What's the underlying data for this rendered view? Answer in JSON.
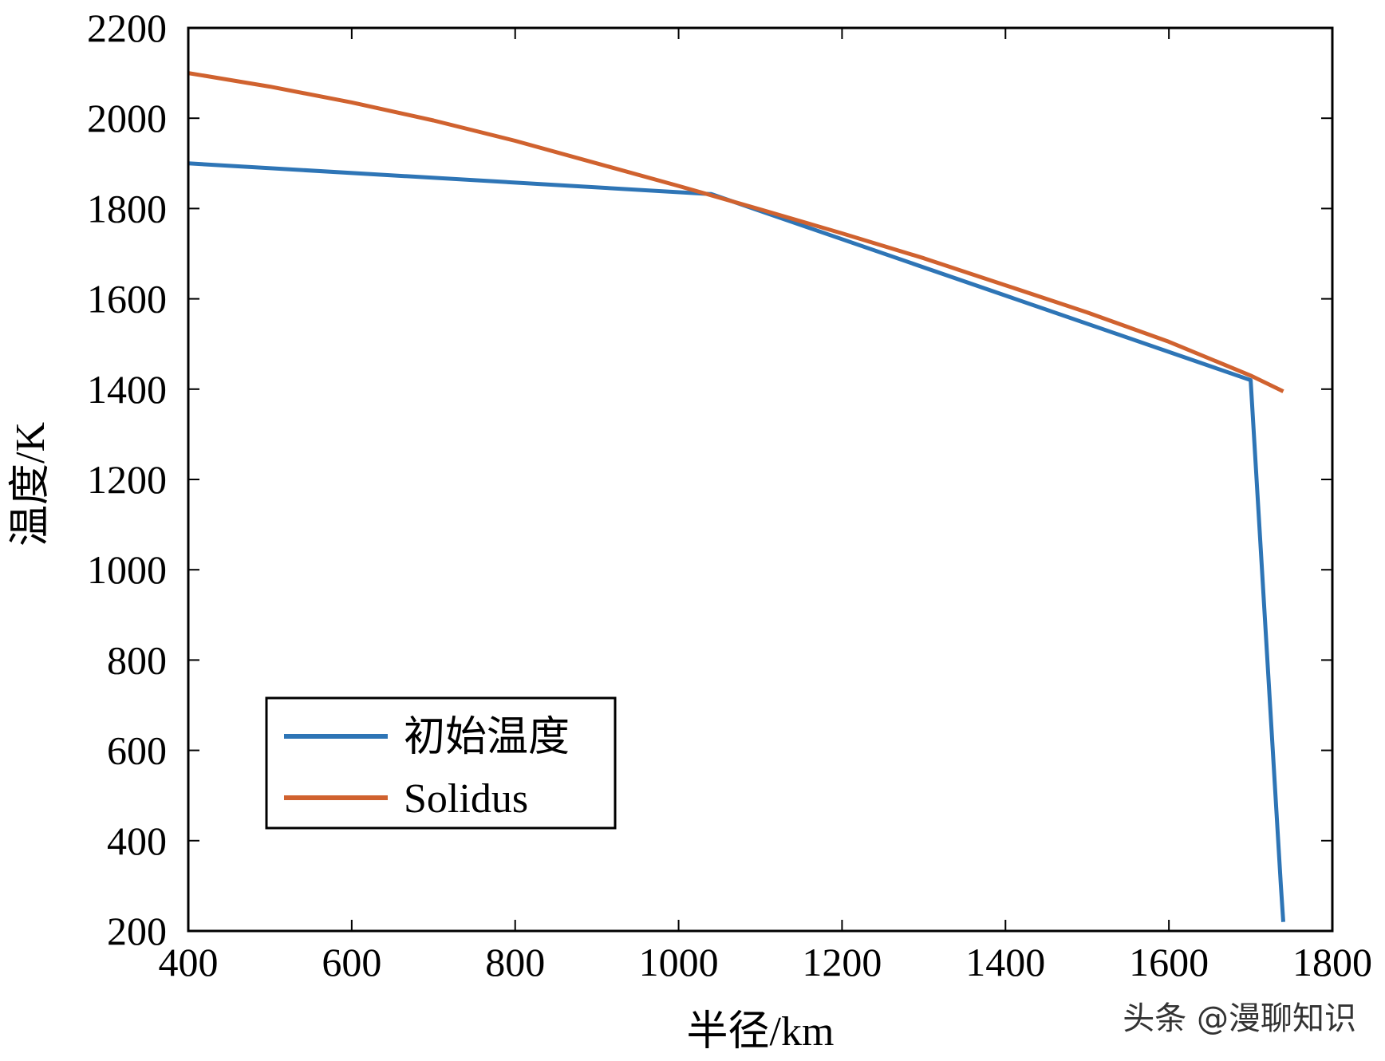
{
  "chart_data": {
    "type": "line",
    "title": "",
    "xlabel": "半径/km",
    "ylabel": "温度/K",
    "xlim": [
      400,
      1800
    ],
    "ylim": [
      200,
      2200
    ],
    "xticks": [
      400,
      600,
      800,
      1000,
      1200,
      1400,
      1600,
      1800
    ],
    "yticks": [
      200,
      400,
      600,
      800,
      1000,
      1200,
      1400,
      1600,
      1800,
      2000,
      2200
    ],
    "grid": false,
    "legend_position": "lower-left",
    "series": [
      {
        "name": "初始温度",
        "color": "#2e75b6",
        "x": [
          400,
          1040,
          1700,
          1737,
          1740
        ],
        "y": [
          1900,
          1832,
          1420,
          300,
          220
        ]
      },
      {
        "name": "Solidus",
        "color": "#d0622f",
        "x": [
          400,
          500,
          600,
          700,
          800,
          900,
          1000,
          1100,
          1200,
          1300,
          1400,
          1500,
          1600,
          1700,
          1740
        ],
        "y": [
          2100,
          2070,
          2035,
          1995,
          1950,
          1900,
          1850,
          1798,
          1745,
          1690,
          1630,
          1570,
          1505,
          1430,
          1395
        ]
      }
    ]
  },
  "watermark": "头条 @漫聊知识"
}
